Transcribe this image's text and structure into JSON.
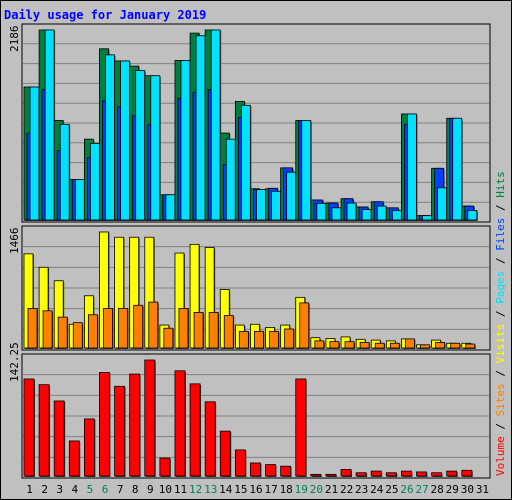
{
  "title": "Daily usage for January 2019",
  "colors": {
    "hits": "#008040",
    "files": "#0040ff",
    "pages": "#00e0ff",
    "visits": "#ffff00",
    "sites": "#ff8000",
    "volume": "#ff0000",
    "weekend_label": "#00805c",
    "weekday_label": "#000000",
    "grid": "#808080"
  },
  "chart_data": {
    "type": "bar",
    "days": [
      "1",
      "2",
      "3",
      "4",
      "5",
      "6",
      "7",
      "8",
      "9",
      "10",
      "11",
      "12",
      "13",
      "14",
      "15",
      "16",
      "17",
      "18",
      "19",
      "20",
      "21",
      "22",
      "23",
      "24",
      "25",
      "26",
      "27",
      "28",
      "29",
      "30",
      "31"
    ],
    "weekend_days": [
      "5",
      "6",
      "12",
      "13",
      "19",
      "20",
      "26",
      "27"
    ],
    "panels": [
      {
        "name": "hits-files-pages",
        "ymax_label": "2186",
        "ymax": 2186,
        "series": [
          {
            "name": "Hits",
            "color": "#008040",
            "values": [
              1530,
              2186,
              1145,
              465,
              930,
              1970,
              1830,
              1770,
              1660,
              290,
              1835,
              2150,
              2186,
              1000,
              1365,
              360,
              360,
              600,
              1145,
              230,
              195,
              245,
              150,
              210,
              140,
              1220,
              50,
              595,
              1170,
              160,
              0
            ]
          },
          {
            "name": "Files",
            "color": "#0040ff",
            "values": [
              1000,
              1500,
              800,
              465,
              720,
              1370,
              1300,
              1200,
              1100,
              290,
              1400,
              1470,
              1500,
              640,
              1180,
              350,
              365,
              600,
              1145,
              230,
              195,
              245,
              150,
              210,
              140,
              1100,
              50,
              595,
              1170,
              160,
              0
            ]
          },
          {
            "name": "Pages",
            "color": "#00e0ff",
            "values": [
              1530,
              2186,
              1100,
              465,
              880,
              1900,
              1830,
              1720,
              1660,
              290,
              1835,
              2120,
              2186,
              930,
              1320,
              350,
              330,
              550,
              1145,
              190,
              140,
              195,
              120,
              160,
              110,
              1220,
              50,
              370,
              1170,
              110,
              0
            ]
          }
        ]
      },
      {
        "name": "visits-sites",
        "ymax_label": "1466",
        "ymax": 1466,
        "series": [
          {
            "name": "Visits",
            "color": "#ffff00",
            "values": [
              1190,
              1020,
              850,
              300,
              660,
              1466,
              1400,
              1400,
              1400,
              290,
              1200,
              1310,
              1270,
              740,
              290,
              300,
              260,
              290,
              640,
              130,
              120,
              140,
              110,
              100,
              90,
              115,
              40,
              100,
              60,
              60,
              0
            ]
          },
          {
            "name": "Sites",
            "color": "#ff8000",
            "values": [
              500,
              470,
              390,
              320,
              420,
              500,
              500,
              540,
              580,
              250,
              500,
              450,
              450,
              410,
              210,
              210,
              210,
              240,
              570,
              90,
              80,
              80,
              70,
              60,
              60,
              115,
              40,
              70,
              60,
              50,
              0
            ]
          }
        ]
      },
      {
        "name": "volume",
        "ymax_label": "142.25",
        "ymax": 142.25,
        "series": [
          {
            "name": "Volume",
            "color": "#ff0000",
            "values": [
              119,
              112,
              92,
              43,
              70,
              127,
              110,
              125,
              142.25,
              22,
              129,
              113,
              91,
              55,
              32,
              16,
              14,
              12,
              119,
              2,
              2,
              8,
              4,
              6,
              4,
              6,
              5,
              4,
              6,
              7,
              0
            ]
          }
        ]
      }
    ],
    "legend_right": [
      "Volume",
      "Sites",
      "Visits",
      "Pages",
      "Files",
      "Hits"
    ]
  }
}
